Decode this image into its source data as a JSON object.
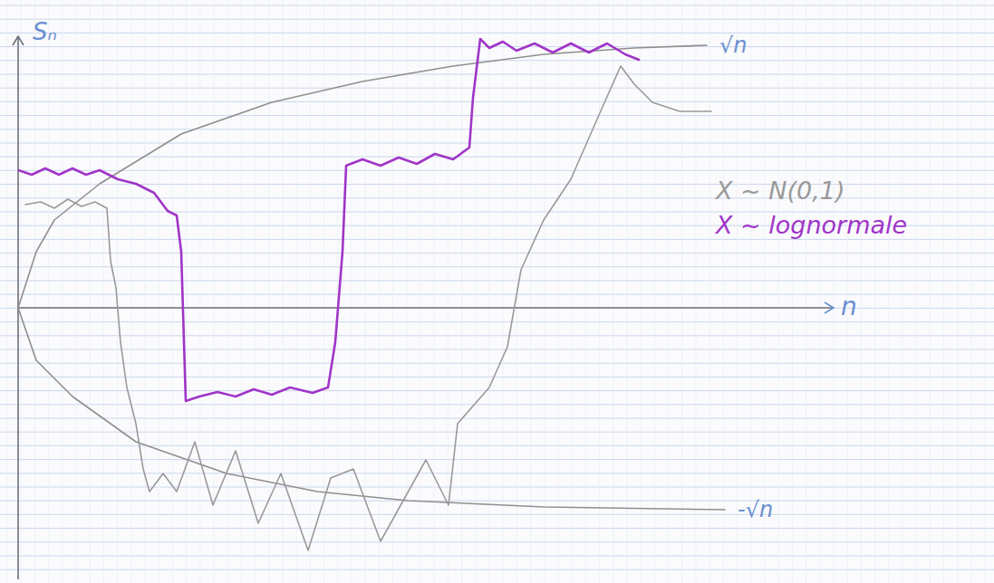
{
  "chart_data": {
    "type": "line",
    "x_label": "n",
    "y_label": "Sₙ",
    "xlim": [
      0,
      90
    ],
    "ylim": [
      -3,
      3
    ],
    "tick_labels": false,
    "grid": false,
    "legend": "right",
    "series": [
      {
        "name": "X ~ N(0,1)",
        "color": "#9a9a9a",
        "line_style": "solid",
        "x": [
          0.8,
          2.5,
          4,
          5.5,
          7,
          8.5,
          9.8,
          10.2,
          10.8,
          11.3,
          12,
          13,
          13.8,
          14.5,
          16,
          17.5,
          19.5,
          21.5,
          24,
          26.5,
          29,
          32,
          34.5,
          37,
          40,
          42.5,
          45,
          47.5,
          48.5,
          52,
          54,
          55.5,
          58,
          61,
          64.5,
          66.5,
          68,
          70,
          73,
          76.5
        ],
        "values": [
          1.14,
          1.17,
          1.1,
          1.2,
          1.12,
          1.17,
          1.1,
          0.52,
          0.22,
          -0.38,
          -0.88,
          -1.28,
          -1.78,
          -2.03,
          -1.83,
          -2.03,
          -1.48,
          -2.18,
          -1.58,
          -2.38,
          -1.83,
          -2.68,
          -1.88,
          -1.78,
          -2.58,
          -2.13,
          -1.68,
          -2.18,
          -1.28,
          -0.88,
          -0.43,
          0.42,
          0.97,
          1.42,
          2.22,
          2.67,
          2.47,
          2.27,
          2.17,
          2.17
        ]
      },
      {
        "name": "X ~ lognormale",
        "color": "#a035c8",
        "line_style": "solid",
        "x": [
          0,
          1.5,
          3,
          4.5,
          6,
          7.5,
          9,
          11,
          13,
          15,
          16.5,
          17.5,
          18,
          18.5,
          20,
          22,
          24,
          26,
          28,
          30,
          32.5,
          34.2,
          35,
          35.8,
          36.2,
          38,
          40,
          42,
          44,
          46,
          48,
          49.8,
          50.2,
          51,
          52,
          53.5,
          55,
          57,
          59,
          61,
          63,
          65,
          67,
          68.5
        ],
        "values": [
          1.52,
          1.47,
          1.54,
          1.47,
          1.54,
          1.47,
          1.52,
          1.42,
          1.37,
          1.27,
          1.07,
          1.02,
          0.62,
          -1.03,
          -0.98,
          -0.93,
          -0.98,
          -0.9,
          -0.96,
          -0.88,
          -0.94,
          -0.88,
          -0.38,
          0.62,
          1.57,
          1.64,
          1.57,
          1.66,
          1.59,
          1.7,
          1.64,
          1.77,
          2.32,
          2.97,
          2.87,
          2.94,
          2.84,
          2.92,
          2.82,
          2.92,
          2.82,
          2.92,
          2.8,
          2.74
        ]
      },
      {
        "name": "√n",
        "color": "#8f8f8f",
        "line_style": "solid",
        "x": [
          0,
          2,
          4,
          9,
          18,
          28,
          38,
          48,
          58,
          68,
          76
        ],
        "values": [
          0,
          0.62,
          0.97,
          1.37,
          1.92,
          2.27,
          2.5,
          2.67,
          2.8,
          2.87,
          2.9
        ]
      },
      {
        "name": "-√n",
        "color": "#8f8f8f",
        "line_style": "solid",
        "x": [
          0,
          2,
          6,
          13,
          23,
          33,
          43,
          58,
          78
        ],
        "values": [
          0,
          -0.58,
          -0.98,
          -1.48,
          -1.83,
          -2.03,
          -2.13,
          -2.2,
          -2.23
        ]
      }
    ]
  }
}
